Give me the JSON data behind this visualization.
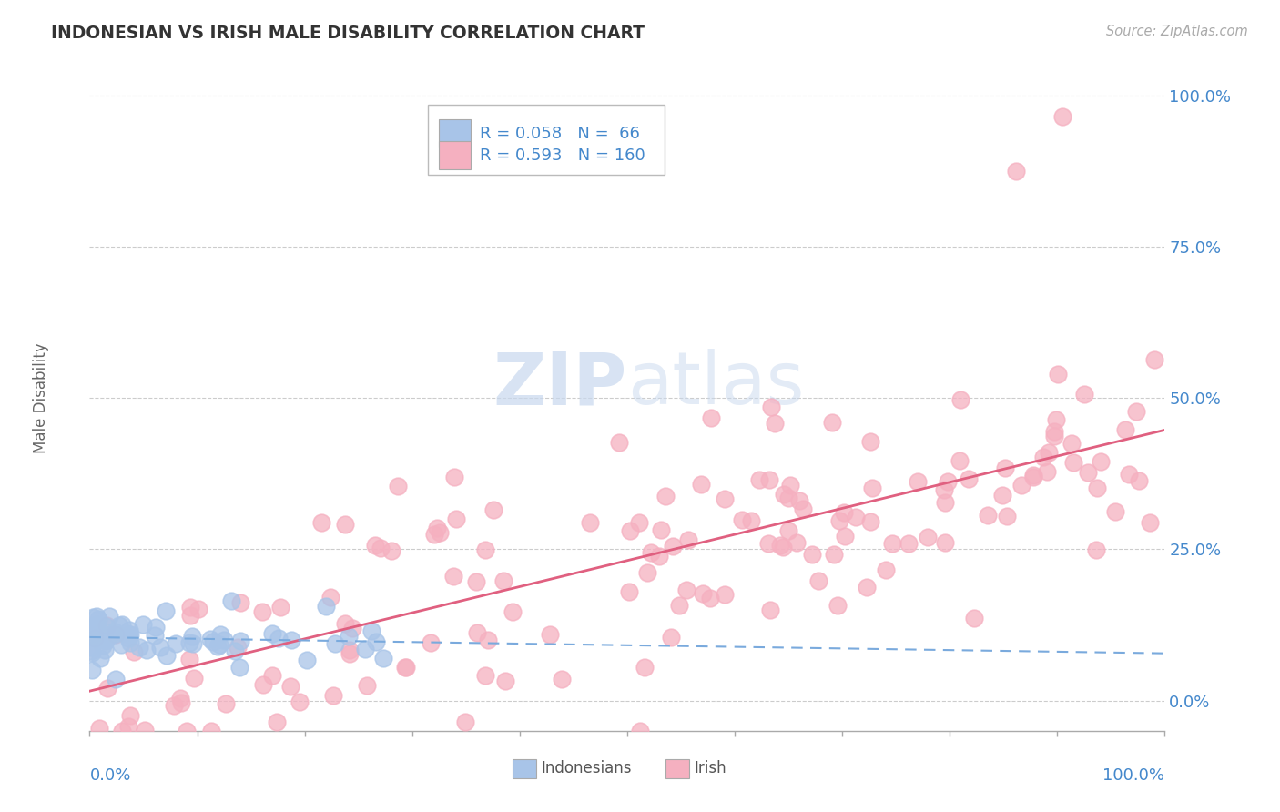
{
  "title": "INDONESIAN VS IRISH MALE DISABILITY CORRELATION CHART",
  "source": "Source: ZipAtlas.com",
  "ylabel": "Male Disability",
  "legend_text1": "R = 0.058   N =  66",
  "legend_text2": "R = 0.593   N = 160",
  "indonesian_color": "#a8c4e8",
  "irish_color": "#f5b0c0",
  "indonesian_trend_color": "#7aaadd",
  "irish_trend_color": "#e06080",
  "background_color": "#ffffff",
  "grid_color": "#cccccc",
  "axis_label_color": "#4488cc",
  "title_color": "#333333"
}
